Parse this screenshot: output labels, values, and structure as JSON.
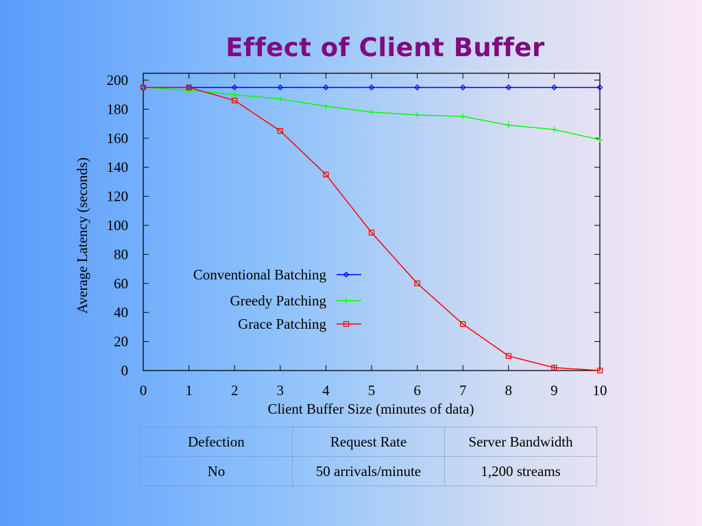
{
  "slide": {
    "title": "Effect of Client Buffer"
  },
  "chart_data": {
    "type": "line",
    "title": "",
    "xlabel": "Client Buffer Size (minutes of data)",
    "ylabel": "Average Latency (seconds)",
    "x": [
      0,
      1,
      2,
      3,
      4,
      5,
      6,
      7,
      8,
      9,
      10
    ],
    "xlim": [
      0,
      10
    ],
    "ylim": [
      0,
      200
    ],
    "x_ticks": [
      "0",
      "1",
      "2",
      "3",
      "4",
      "5",
      "6",
      "7",
      "8",
      "9",
      "10"
    ],
    "y_ticks": [
      "0",
      "20",
      "40",
      "60",
      "80",
      "100",
      "120",
      "140",
      "160",
      "180",
      "200"
    ],
    "grid": false,
    "legend_placement": "center-left",
    "series": [
      {
        "name": "Conventional Batching",
        "color": "#0000ff",
        "marker": "diamond",
        "values": [
          195,
          195,
          195,
          195,
          195,
          195,
          195,
          195,
          195,
          195,
          195
        ]
      },
      {
        "name": "Greedy Patching",
        "color": "#00ff00",
        "marker": "plus",
        "values": [
          195,
          193,
          190,
          187,
          182,
          178,
          176,
          175,
          169,
          166,
          159
        ]
      },
      {
        "name": "Grace Patching",
        "color": "#ff0000",
        "marker": "square",
        "values": [
          195,
          195,
          186,
          165,
          135,
          95,
          60,
          32,
          10,
          2,
          0
        ]
      }
    ]
  },
  "params_table": {
    "headers": [
      "Defection",
      "Request Rate",
      "Server Bandwidth"
    ],
    "rows": [
      [
        "No",
        "50 arrivals/minute",
        "1,200 streams"
      ]
    ]
  }
}
